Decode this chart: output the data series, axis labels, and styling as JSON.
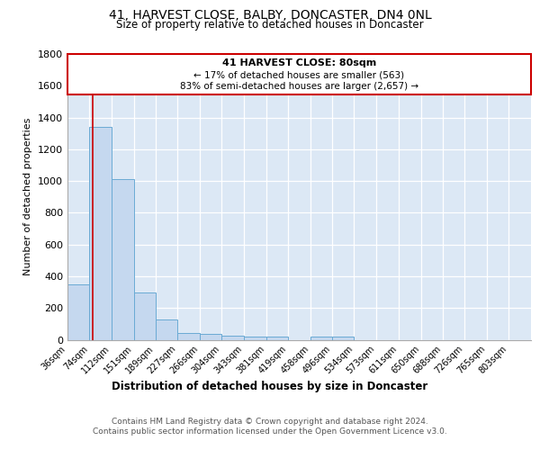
{
  "title_line1": "41, HARVEST CLOSE, BALBY, DONCASTER, DN4 0NL",
  "title_line2": "Size of property relative to detached houses in Doncaster",
  "xlabel": "Distribution of detached houses by size in Doncaster",
  "ylabel": "Number of detached properties",
  "categories": [
    "36sqm",
    "74sqm",
    "112sqm",
    "151sqm",
    "189sqm",
    "227sqm",
    "266sqm",
    "304sqm",
    "343sqm",
    "381sqm",
    "419sqm",
    "458sqm",
    "496sqm",
    "534sqm",
    "573sqm",
    "611sqm",
    "650sqm",
    "688sqm",
    "726sqm",
    "765sqm",
    "803sqm"
  ],
  "values": [
    350,
    1340,
    1010,
    295,
    130,
    40,
    38,
    28,
    20,
    18,
    0,
    20,
    18,
    0,
    0,
    0,
    0,
    0,
    0,
    0,
    0
  ],
  "bar_color": "#c5d8ef",
  "bar_edge_color": "#6aaad4",
  "red_line_x": 80,
  "bin_edges": [
    36,
    74,
    112,
    151,
    189,
    227,
    266,
    304,
    343,
    381,
    419,
    458,
    496,
    534,
    573,
    611,
    650,
    688,
    726,
    765,
    803,
    841
  ],
  "ylim": [
    0,
    1800
  ],
  "yticks": [
    0,
    200,
    400,
    600,
    800,
    1000,
    1200,
    1400,
    1600,
    1800
  ],
  "annotation_title": "41 HARVEST CLOSE: 80sqm",
  "annotation_line1": "← 17% of detached houses are smaller (563)",
  "annotation_line2": "83% of semi-detached houses are larger (2,657) →",
  "annotation_box_edge": "#cc0000",
  "bg_color": "#dce8f5",
  "footer_line1": "Contains HM Land Registry data © Crown copyright and database right 2024.",
  "footer_line2": "Contains public sector information licensed under the Open Government Licence v3.0."
}
